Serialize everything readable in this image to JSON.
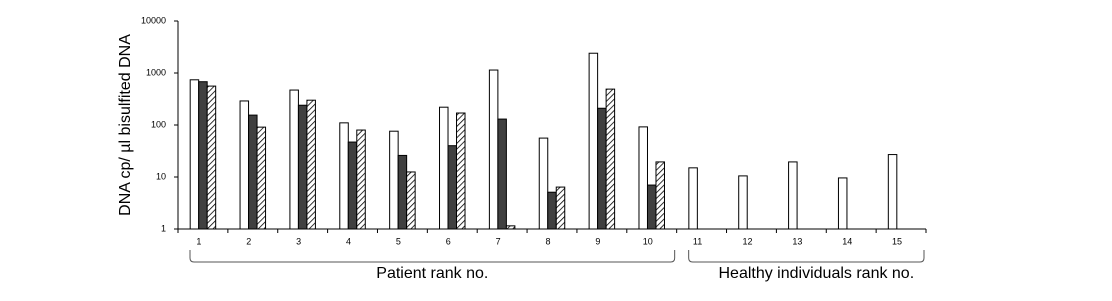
{
  "chart_data": {
    "type": "bar",
    "y_label": "DNA cp/ µl bisulfited DNA",
    "log_scale": true,
    "ylim": [
      1,
      10000
    ],
    "yticks": [
      1,
      10,
      100,
      1000,
      10000
    ],
    "categories": [
      "1",
      "2",
      "3",
      "4",
      "5",
      "6",
      "7",
      "8",
      "9",
      "10",
      "11",
      "12",
      "13",
      "14",
      "15"
    ],
    "series": [
      {
        "color": "#ffffff",
        "values": [
          740,
          290,
          470,
          110,
          76,
          220,
          1140,
          56,
          2400,
          92,
          15,
          10.5,
          19.5,
          9.6,
          27
        ]
      },
      {
        "color": "#404040",
        "values": [
          680,
          155,
          240,
          47,
          26,
          40,
          130,
          5.1,
          210,
          7,
          null,
          null,
          null,
          null,
          null
        ]
      },
      {
        "color": "#ffffff",
        "hatch": true,
        "values": [
          560,
          91,
          300,
          80,
          12.5,
          170,
          1.15,
          6.4,
          490,
          19.5,
          null,
          null,
          null,
          null,
          null
        ]
      }
    ],
    "groups": [
      {
        "label": "Patient rank no.",
        "from": "1",
        "to": "10"
      },
      {
        "label": "Healthy individuals rank no.",
        "from": "11",
        "to": "15"
      }
    ]
  }
}
